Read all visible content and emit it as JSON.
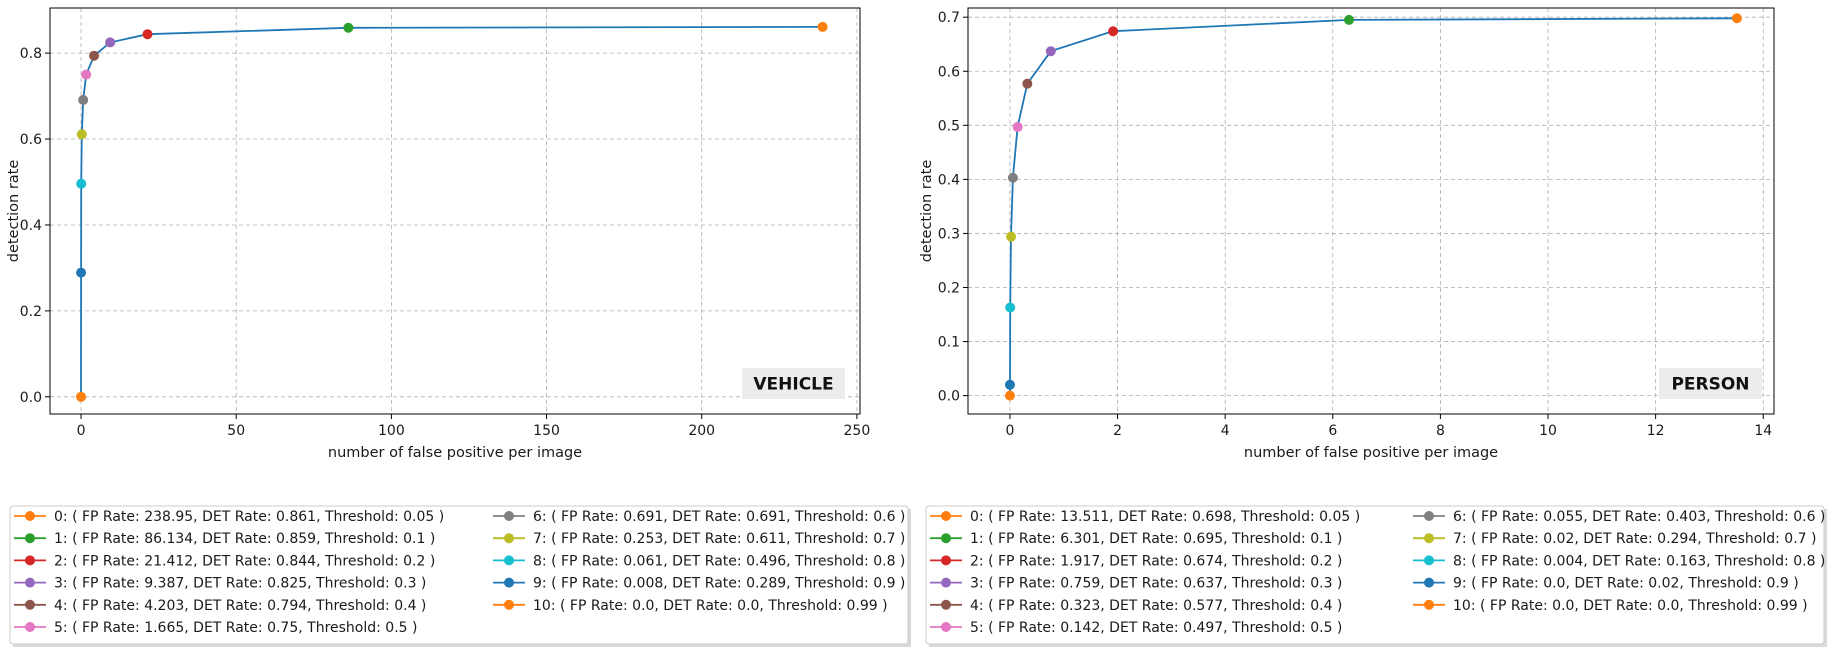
{
  "colors": {
    "curve": "#1f77b4",
    "grid": "#b0b0b0",
    "badge_bg": "#ececec",
    "legend_border": "#cccccc",
    "marker_cycle": [
      "#ff7f0e",
      "#2ca02c",
      "#d62728",
      "#9467bd",
      "#8c564b",
      "#e377c2",
      "#7f7f7f",
      "#bcbd22",
      "#17becf",
      "#1f77b4",
      "#ff7f0e"
    ]
  },
  "chart_data": [
    {
      "type": "line",
      "badge": "VEHICLE",
      "title": "",
      "xlabel": "number of false positive per image",
      "ylabel": "detection rate",
      "xlim": [
        -10,
        251
      ],
      "ylim": [
        -0.04,
        0.905
      ],
      "xticks": [
        0,
        50,
        100,
        150,
        200,
        250
      ],
      "xtick_labels": [
        "0",
        "50",
        "100",
        "150",
        "200",
        "250"
      ],
      "yticks": [
        0.0,
        0.2,
        0.4,
        0.6,
        0.8
      ],
      "ytick_labels": [
        "0.0",
        "0.2",
        "0.4",
        "0.6",
        "0.8"
      ],
      "grid": true,
      "grid_style": "dashed",
      "legend_position": "below",
      "series": [
        {
          "x": [
            238.95,
            86.134,
            21.412,
            9.387,
            4.203,
            1.665,
            0.691,
            0.253,
            0.061,
            0.008,
            0.0
          ],
          "y": [
            0.861,
            0.859,
            0.844,
            0.825,
            0.794,
            0.75,
            0.691,
            0.611,
            0.496,
            0.289,
            0.0
          ]
        }
      ],
      "legend": [
        "0: ( FP Rate: 238.95, DET Rate: 0.861, Threshold: 0.05 )",
        "1: ( FP Rate: 86.134, DET Rate: 0.859, Threshold: 0.1 )",
        "2: ( FP Rate: 21.412, DET Rate: 0.844, Threshold: 0.2 )",
        "3: ( FP Rate: 9.387, DET Rate: 0.825, Threshold: 0.3 )",
        "4: ( FP Rate: 4.203, DET Rate: 0.794, Threshold: 0.4 )",
        "5: ( FP Rate: 1.665, DET Rate: 0.75, Threshold: 0.5 )",
        "6: ( FP Rate: 0.691, DET Rate: 0.691, Threshold: 0.6 )",
        "7: ( FP Rate: 0.253, DET Rate: 0.611, Threshold: 0.7 )",
        "8: ( FP Rate: 0.061, DET Rate: 0.496, Threshold: 0.8 )",
        "9: ( FP Rate: 0.008, DET Rate: 0.289, Threshold: 0.9 )",
        "10: ( FP Rate: 0.0, DET Rate: 0.0, Threshold: 0.99 )"
      ]
    },
    {
      "type": "line",
      "badge": "PERSON",
      "title": "",
      "xlabel": "number of false positive per image",
      "ylabel": "detection rate",
      "xlim": [
        -0.78,
        14.2
      ],
      "ylim": [
        -0.034,
        0.717
      ],
      "xticks": [
        0,
        2,
        4,
        6,
        8,
        10,
        12,
        14
      ],
      "xtick_labels": [
        "0",
        "2",
        "4",
        "6",
        "8",
        "10",
        "12",
        "14"
      ],
      "yticks": [
        0.0,
        0.1,
        0.2,
        0.3,
        0.4,
        0.5,
        0.6,
        0.7
      ],
      "ytick_labels": [
        "0.0",
        "0.1",
        "0.2",
        "0.3",
        "0.4",
        "0.5",
        "0.6",
        "0.7"
      ],
      "grid": true,
      "grid_style": "dashed",
      "legend_position": "below",
      "series": [
        {
          "x": [
            13.511,
            6.301,
            1.917,
            0.759,
            0.323,
            0.142,
            0.055,
            0.02,
            0.004,
            0.0,
            0.0
          ],
          "y": [
            0.698,
            0.695,
            0.674,
            0.637,
            0.577,
            0.497,
            0.403,
            0.294,
            0.163,
            0.02,
            0.0
          ]
        }
      ],
      "legend": [
        "0: ( FP Rate: 13.511, DET Rate: 0.698, Threshold: 0.05 )",
        "1: ( FP Rate: 6.301, DET Rate: 0.695, Threshold: 0.1 )",
        "2: ( FP Rate: 1.917, DET Rate: 0.674, Threshold: 0.2 )",
        "3: ( FP Rate: 0.759, DET Rate: 0.637, Threshold: 0.3 )",
        "4: ( FP Rate: 0.323, DET Rate: 0.577, Threshold: 0.4 )",
        "5: ( FP Rate: 0.142, DET Rate: 0.497, Threshold: 0.5 )",
        "6: ( FP Rate: 0.055, DET Rate: 0.403, Threshold: 0.6 )",
        "7: ( FP Rate: 0.02, DET Rate: 0.294, Threshold: 0.7 )",
        "8: ( FP Rate: 0.004, DET Rate: 0.163, Threshold: 0.8 )",
        "9: ( FP Rate: 0.0, DET Rate: 0.02, Threshold: 0.9 )",
        "10: ( FP Rate: 0.0, DET Rate: 0.0, Threshold: 0.99 )"
      ]
    }
  ]
}
